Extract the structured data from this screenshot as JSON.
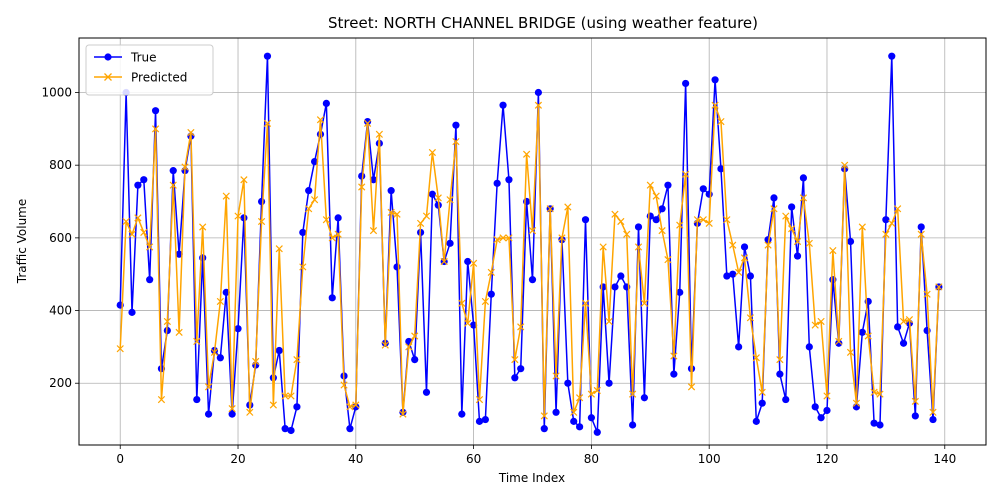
{
  "chart_data": {
    "type": "line",
    "title": "Street: NORTH CHANNEL BRIDGE (using weather feature)",
    "xlabel": "Time Index",
    "ylabel": "Traffic Volume",
    "xlim": [
      -7,
      147
    ],
    "ylim": [
      30,
      1150
    ],
    "xticks": [
      0,
      20,
      40,
      60,
      80,
      100,
      120,
      140
    ],
    "yticks": [
      200,
      400,
      600,
      800,
      1000
    ],
    "grid": true,
    "legend_position": "top-left",
    "series": [
      {
        "name": "True",
        "color": "#0000ff",
        "marker": "circle",
        "x": [
          0,
          1,
          2,
          3,
          4,
          5,
          6,
          7,
          8,
          9,
          10,
          11,
          12,
          13,
          14,
          15,
          16,
          17,
          18,
          19,
          20,
          21,
          22,
          23,
          24,
          25,
          26,
          27,
          28,
          29,
          30,
          31,
          32,
          33,
          34,
          35,
          36,
          37,
          38,
          39,
          40,
          41,
          42,
          43,
          44,
          45,
          46,
          47,
          48,
          49,
          50,
          51,
          52,
          53,
          54,
          55,
          56,
          57,
          58,
          59,
          60,
          61,
          62,
          63,
          64,
          65,
          66,
          67,
          68,
          69,
          70,
          71,
          72,
          73,
          74,
          75,
          76,
          77,
          78,
          79,
          80,
          81,
          82,
          83,
          84,
          85,
          86,
          87,
          88,
          89,
          90,
          91,
          92,
          93,
          94,
          95,
          96,
          97,
          98,
          99,
          100,
          101,
          102,
          103,
          104,
          105,
          106,
          107,
          108,
          109,
          110,
          111,
          112,
          113,
          114,
          115,
          116,
          117,
          118,
          119,
          120,
          121,
          122,
          123,
          124,
          125,
          126,
          127,
          128,
          129,
          130,
          131,
          132,
          133,
          134,
          135,
          136,
          137,
          138,
          139
        ],
        "values": [
          415,
          1000,
          395,
          745,
          760,
          485,
          950,
          240,
          345,
          785,
          555,
          785,
          880,
          155,
          545,
          115,
          290,
          270,
          450,
          115,
          350,
          655,
          140,
          250,
          700,
          1100,
          215,
          290,
          75,
          70,
          135,
          615,
          730,
          810,
          885,
          970,
          435,
          655,
          220,
          75,
          135,
          770,
          920,
          760,
          860,
          310,
          730,
          520,
          120,
          315,
          265,
          615,
          175,
          720,
          690,
          535,
          585,
          910,
          115,
          535,
          360,
          95,
          100,
          445,
          750,
          965,
          760,
          215,
          240,
          700,
          485,
          1000,
          75,
          680,
          120,
          595,
          200,
          95,
          80,
          650,
          105,
          65,
          465,
          200,
          465,
          495,
          465,
          85,
          630,
          160,
          660,
          650,
          680,
          745,
          225,
          450,
          1025,
          240,
          640,
          735,
          720,
          1035,
          790,
          495,
          500,
          300,
          575,
          495,
          95,
          145,
          595,
          710,
          225,
          155,
          685,
          550,
          765,
          300,
          135,
          105,
          125,
          485,
          310,
          790,
          590,
          135,
          340,
          425,
          90,
          85,
          650,
          1100,
          355,
          310,
          365,
          110,
          630,
          345,
          100,
          465
        ]
      },
      {
        "name": "Predicted",
        "color": "#ffa500",
        "marker": "x",
        "x": [
          0,
          1,
          2,
          3,
          4,
          5,
          6,
          7,
          8,
          9,
          10,
          11,
          12,
          13,
          14,
          15,
          16,
          17,
          18,
          19,
          20,
          21,
          22,
          23,
          24,
          25,
          26,
          27,
          28,
          29,
          30,
          31,
          32,
          33,
          34,
          35,
          36,
          37,
          38,
          39,
          40,
          41,
          42,
          43,
          44,
          45,
          46,
          47,
          48,
          49,
          50,
          51,
          52,
          53,
          54,
          55,
          56,
          57,
          58,
          59,
          60,
          61,
          62,
          63,
          64,
          65,
          66,
          67,
          68,
          69,
          70,
          71,
          72,
          73,
          74,
          75,
          76,
          77,
          78,
          79,
          80,
          81,
          82,
          83,
          84,
          85,
          86,
          87,
          88,
          89,
          90,
          91,
          92,
          93,
          94,
          95,
          96,
          97,
          98,
          99,
          100,
          101,
          102,
          103,
          104,
          105,
          106,
          107,
          108,
          109,
          110,
          111,
          112,
          113,
          114,
          115,
          116,
          117,
          118,
          119,
          120,
          121,
          122,
          123,
          124,
          125,
          126,
          127,
          128,
          129,
          130,
          131,
          132,
          133,
          134,
          135,
          136,
          137,
          138,
          139
        ],
        "values": [
          295,
          645,
          610,
          655,
          615,
          575,
          900,
          155,
          370,
          745,
          340,
          795,
          890,
          315,
          630,
          190,
          285,
          425,
          715,
          130,
          660,
          760,
          120,
          260,
          645,
          915,
          140,
          570,
          165,
          165,
          265,
          520,
          680,
          705,
          925,
          650,
          600,
          610,
          195,
          135,
          140,
          740,
          915,
          620,
          885,
          305,
          670,
          665,
          115,
          300,
          330,
          640,
          660,
          835,
          710,
          535,
          705,
          865,
          420,
          365,
          530,
          155,
          425,
          505,
          595,
          600,
          600,
          265,
          355,
          830,
          620,
          965,
          110,
          680,
          220,
          600,
          685,
          120,
          160,
          420,
          170,
          180,
          575,
          370,
          665,
          645,
          610,
          170,
          575,
          420,
          745,
          715,
          620,
          540,
          275,
          635,
          775,
          190,
          650,
          650,
          640,
          965,
          920,
          650,
          580,
          505,
          545,
          380,
          270,
          175,
          580,
          680,
          265,
          660,
          625,
          590,
          710,
          585,
          360,
          370,
          165,
          565,
          315,
          800,
          285,
          145,
          630,
          330,
          175,
          170,
          610,
          640,
          680,
          370,
          375,
          150,
          610,
          445,
          120,
          465
        ]
      }
    ]
  }
}
